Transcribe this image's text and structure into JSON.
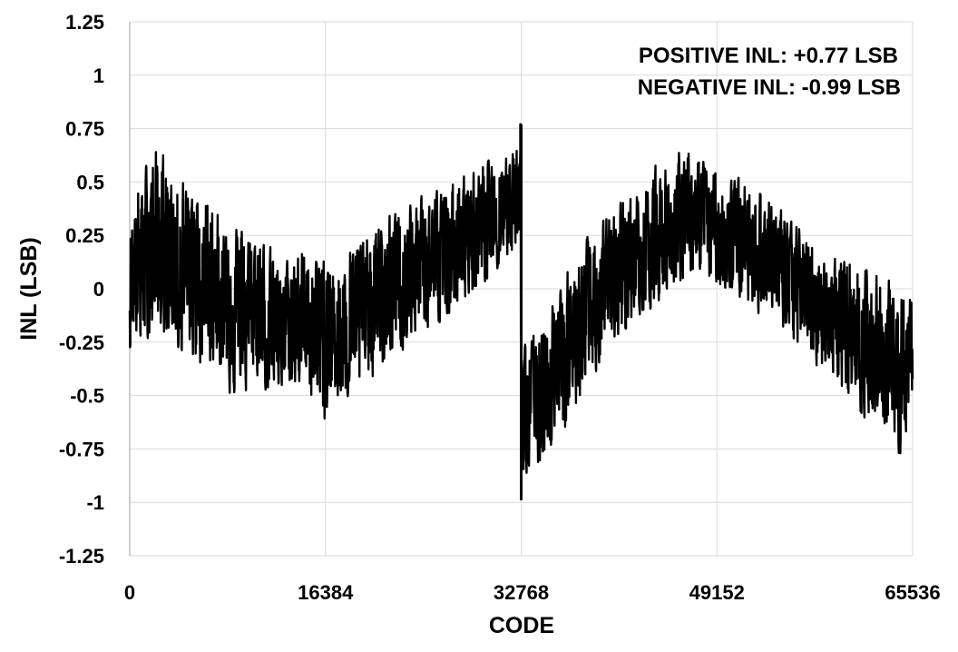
{
  "chart_data": {
    "type": "line",
    "title": "",
    "xlabel": "CODE",
    "ylabel": "INL (LSB)",
    "xlim": [
      0,
      65536
    ],
    "ylim": [
      -1.25,
      1.25
    ],
    "x_ticks": [
      0,
      16384,
      32768,
      49152,
      65536
    ],
    "x_tick_labels": [
      "0",
      "16384",
      "32768",
      "49152",
      "65536"
    ],
    "y_ticks": [
      -1.25,
      -1,
      -0.75,
      -0.5,
      -0.25,
      0,
      0.25,
      0.5,
      0.75,
      1,
      1.25
    ],
    "y_tick_labels": [
      "-1.25",
      "-1",
      "-0.75",
      "-0.5",
      "-0.25",
      "0",
      "0.25",
      "0.5",
      "0.75",
      "1",
      "1.25"
    ],
    "grid": "vertical-and-horizontal",
    "annotations": [
      "POSITIVE INL: +0.77 LSB",
      "NEGATIVE INL: -0.99 LSB"
    ],
    "series": [
      {
        "color": "#000000",
        "x": [
          0,
          1024,
          2048,
          3072,
          4096,
          5120,
          6144,
          7168,
          8192,
          9216,
          10240,
          11264,
          12288,
          13312,
          14336,
          15360,
          16384,
          17408,
          18432,
          19456,
          20480,
          21504,
          22528,
          23552,
          24576,
          25600,
          26624,
          27648,
          28672,
          29696,
          30720,
          31744,
          32700,
          32768,
          33792,
          34816,
          35840,
          36864,
          37888,
          38912,
          39936,
          40960,
          41984,
          43008,
          44032,
          45056,
          46080,
          47104,
          48128,
          49152,
          50176,
          51200,
          52224,
          53248,
          54272,
          55296,
          56320,
          57344,
          58368,
          59392,
          60416,
          61440,
          62464,
          63488,
          64512,
          65536
        ],
        "y_center": [
          0.05,
          0.1,
          0.15,
          0.12,
          0.1,
          0.08,
          0.05,
          0.02,
          0.0,
          -0.05,
          -0.1,
          -0.12,
          -0.15,
          -0.18,
          -0.2,
          -0.2,
          -0.22,
          -0.18,
          -0.14,
          -0.1,
          -0.06,
          -0.02,
          0.02,
          0.06,
          0.1,
          0.14,
          0.18,
          0.22,
          0.27,
          0.32,
          0.37,
          0.42,
          0.46,
          -0.6,
          -0.52,
          -0.44,
          -0.36,
          -0.28,
          -0.2,
          -0.12,
          -0.05,
          0.02,
          0.08,
          0.14,
          0.19,
          0.23,
          0.26,
          0.28,
          0.29,
          0.29,
          0.27,
          0.24,
          0.2,
          0.15,
          0.1,
          0.05,
          0.0,
          -0.05,
          -0.1,
          -0.15,
          -0.2,
          -0.25,
          -0.3,
          -0.34,
          -0.38,
          -0.4
        ],
        "y_high": [
          0.47,
          0.6,
          0.72,
          0.65,
          0.6,
          0.55,
          0.5,
          0.42,
          0.38,
          0.35,
          0.3,
          0.25,
          0.2,
          0.15,
          0.25,
          0.3,
          0.25,
          0.2,
          0.25,
          0.3,
          0.35,
          0.4,
          0.45,
          0.46,
          0.48,
          0.5,
          0.52,
          0.55,
          0.6,
          0.62,
          0.68,
          0.72,
          0.77,
          -0.25,
          -0.15,
          -0.05,
          0.05,
          0.15,
          0.25,
          0.3,
          0.38,
          0.45,
          0.5,
          0.55,
          0.6,
          0.64,
          0.67,
          0.66,
          0.63,
          0.6,
          0.58,
          0.55,
          0.52,
          0.48,
          0.42,
          0.35,
          0.3,
          0.25,
          0.2,
          0.18,
          0.2,
          0.15,
          0.12,
          0.08,
          0.05,
          0.05
        ],
        "y_low": [
          -0.35,
          -0.3,
          -0.25,
          -0.28,
          -0.35,
          -0.38,
          -0.42,
          -0.45,
          -0.52,
          -0.55,
          -0.52,
          -0.5,
          -0.55,
          -0.52,
          -0.5,
          -0.55,
          -0.7,
          -0.6,
          -0.55,
          -0.5,
          -0.45,
          -0.4,
          -0.35,
          -0.3,
          -0.28,
          -0.22,
          -0.18,
          -0.12,
          -0.08,
          -0.02,
          0.05,
          0.12,
          0.15,
          -0.99,
          -0.92,
          -0.85,
          -0.75,
          -0.65,
          -0.55,
          -0.45,
          -0.35,
          -0.28,
          -0.2,
          -0.15,
          -0.1,
          -0.05,
          0.0,
          0.02,
          0.0,
          -0.02,
          -0.05,
          -0.08,
          -0.12,
          -0.18,
          -0.22,
          -0.28,
          -0.32,
          -0.38,
          -0.45,
          -0.5,
          -0.55,
          -0.65,
          -0.7,
          -0.78,
          -0.86,
          -0.5
        ]
      }
    ]
  }
}
